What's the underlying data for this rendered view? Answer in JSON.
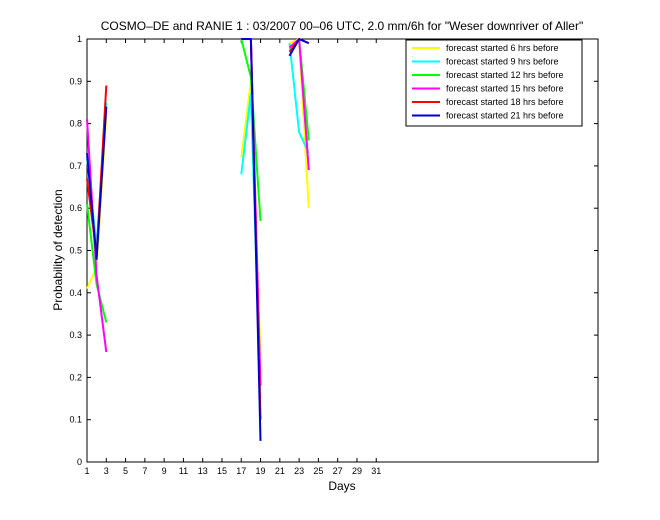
{
  "chart_data": {
    "type": "line",
    "title": "COSMO–DE and RANIE 1 : 03/2007 00–06 UTC, 2.0 mm/6h for \"Weser downriver of Aller\"",
    "xlabel": "Days",
    "ylabel": "Probability of detection",
    "xlim": [
      1,
      54
    ],
    "ylim": [
      0,
      1
    ],
    "xticks": [
      "1",
      "3",
      "5",
      "7",
      "9",
      "11",
      "13",
      "15",
      "17",
      "19",
      "21",
      "23",
      "25",
      "27",
      "29",
      "31"
    ],
    "yticks": [
      "0",
      "0.1",
      "0.2",
      "0.3",
      "0.4",
      "0.5",
      "0.6",
      "0.7",
      "0.8",
      "0.9",
      "1"
    ],
    "legend_position": "top-right",
    "series": [
      {
        "name": "forecast started 6 hrs before",
        "color": "#ffff00",
        "segments": [
          [
            [
              1,
              0.41
            ],
            [
              2,
              0.46
            ],
            [
              3,
              0.82
            ]
          ],
          [
            [
              17,
              0.72
            ],
            [
              18,
              0.9
            ],
            [
              19,
              0.25
            ]
          ],
          [
            [
              22,
              0.99
            ],
            [
              23,
              1.0
            ],
            [
              24,
              0.6
            ]
          ]
        ]
      },
      {
        "name": "forecast started 9 hrs before",
        "color": "#00ffff",
        "segments": [
          [
            [
              1,
              0.72
            ],
            [
              2,
              0.51
            ],
            [
              3,
              0.85
            ]
          ],
          [
            [
              17,
              0.68
            ],
            [
              18,
              0.87
            ],
            [
              19,
              0.15
            ]
          ],
          [
            [
              22,
              0.99
            ],
            [
              23,
              0.78
            ],
            [
              24,
              0.73
            ]
          ]
        ]
      },
      {
        "name": "forecast started 12 hrs before",
        "color": "#00ff00",
        "segments": [
          [
            [
              1,
              0.61
            ],
            [
              2,
              0.42
            ],
            [
              3,
              0.33
            ]
          ],
          [
            [
              17,
              1.0
            ],
            [
              18,
              0.91
            ],
            [
              19,
              0.57
            ]
          ],
          [
            [
              22,
              0.97
            ],
            [
              23,
              1.0
            ],
            [
              24,
              0.76
            ]
          ]
        ]
      },
      {
        "name": "forecast started 15 hrs before",
        "color": "#ff00ff",
        "segments": [
          [
            [
              1,
              0.81
            ],
            [
              2,
              0.44
            ],
            [
              3,
              0.26
            ]
          ],
          [
            [
              17,
              1.0
            ],
            [
              18,
              1.0
            ],
            [
              19,
              0.18
            ]
          ],
          [
            [
              22,
              0.98
            ],
            [
              23,
              1.0
            ],
            [
              24,
              0.69
            ]
          ]
        ]
      },
      {
        "name": "forecast started 18 hrs before",
        "color": "#ff0000",
        "segments": [
          [
            [
              1,
              0.67
            ],
            [
              2,
              0.49
            ],
            [
              3,
              0.89
            ]
          ],
          [
            [
              17,
              1.0
            ],
            [
              18,
              1.0
            ],
            [
              19,
              0.1
            ]
          ],
          [
            [
              22,
              0.97
            ],
            [
              23,
              1.0
            ],
            [
              24,
              0.99
            ]
          ]
        ]
      },
      {
        "name": "forecast started 21 hrs before",
        "color": "#0000cc",
        "segments": [
          [
            [
              1,
              0.73
            ],
            [
              2,
              0.48
            ],
            [
              3,
              0.84
            ]
          ],
          [
            [
              17,
              1.0
            ],
            [
              18,
              1.0
            ],
            [
              19,
              0.05
            ]
          ],
          [
            [
              22,
              0.96
            ],
            [
              23,
              1.0
            ],
            [
              24,
              0.99
            ]
          ]
        ]
      }
    ]
  }
}
